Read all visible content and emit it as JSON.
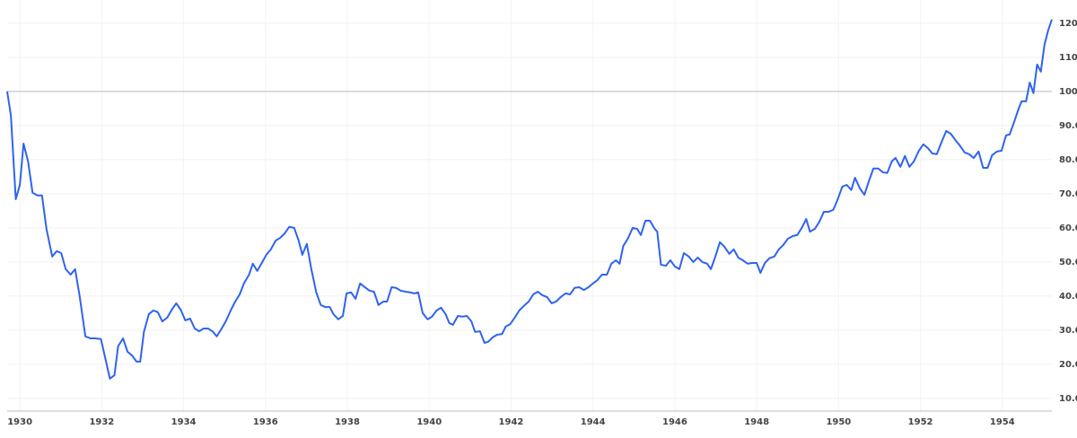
{
  "chart_data": {
    "type": "line",
    "x": [
      1929.69,
      1929.78,
      1929.9,
      1930.0,
      1930.09,
      1930.2,
      1930.31,
      1930.43,
      1930.54,
      1930.65,
      1930.79,
      1930.9,
      1931.01,
      1931.12,
      1931.24,
      1931.35,
      1931.46,
      1931.6,
      1931.73,
      1931.84,
      1931.98,
      1932.09,
      1932.2,
      1932.31,
      1932.4,
      1932.52,
      1932.63,
      1932.74,
      1932.85,
      1932.94,
      1933.03,
      1933.15,
      1933.26,
      1933.37,
      1933.48,
      1933.6,
      1933.71,
      1933.82,
      1933.93,
      1934.04,
      1934.16,
      1934.27,
      1934.38,
      1934.49,
      1934.6,
      1934.72,
      1934.81,
      1934.92,
      1935.03,
      1935.15,
      1935.26,
      1935.37,
      1935.48,
      1935.6,
      1935.69,
      1935.8,
      1935.91,
      1936.02,
      1936.13,
      1936.25,
      1936.36,
      1936.47,
      1936.58,
      1936.7,
      1936.81,
      1936.9,
      1937.01,
      1937.12,
      1937.24,
      1937.35,
      1937.46,
      1937.57,
      1937.66,
      1937.78,
      1937.89,
      1937.98,
      1938.09,
      1938.2,
      1938.31,
      1938.43,
      1938.54,
      1938.65,
      1938.76,
      1938.88,
      1938.97,
      1939.08,
      1939.19,
      1939.3,
      1939.42,
      1939.53,
      1939.64,
      1939.73,
      1939.84,
      1939.96,
      1940.07,
      1940.18,
      1940.29,
      1940.4,
      1940.49,
      1940.58,
      1940.7,
      1940.81,
      1940.92,
      1941.03,
      1941.12,
      1941.24,
      1941.35,
      1941.44,
      1941.55,
      1941.66,
      1941.78,
      1941.87,
      1941.98,
      1942.09,
      1942.2,
      1942.31,
      1942.43,
      1942.54,
      1942.65,
      1942.76,
      1942.88,
      1942.99,
      1943.1,
      1943.21,
      1943.33,
      1943.44,
      1943.55,
      1943.66,
      1943.78,
      1943.89,
      1944.0,
      1944.11,
      1944.22,
      1944.34,
      1944.45,
      1944.56,
      1944.65,
      1944.74,
      1944.85,
      1944.97,
      1945.08,
      1945.17,
      1945.28,
      1945.39,
      1945.51,
      1945.57,
      1945.66,
      1945.78,
      1945.89,
      1946.0,
      1946.11,
      1946.22,
      1946.34,
      1946.45,
      1946.56,
      1946.67,
      1946.79,
      1946.88,
      1946.99,
      1947.1,
      1947.21,
      1947.33,
      1947.44,
      1947.55,
      1947.66,
      1947.78,
      1947.89,
      1948.0,
      1948.09,
      1948.2,
      1948.31,
      1948.43,
      1948.54,
      1948.65,
      1948.76,
      1948.88,
      1948.99,
      1949.1,
      1949.21,
      1949.3,
      1949.42,
      1949.53,
      1949.64,
      1949.75,
      1949.87,
      1949.98,
      1950.09,
      1950.2,
      1950.31,
      1950.4,
      1950.52,
      1950.63,
      1950.74,
      1950.85,
      1950.97,
      1951.08,
      1951.19,
      1951.3,
      1951.39,
      1951.51,
      1951.62,
      1951.73,
      1951.84,
      1951.96,
      1952.07,
      1952.18,
      1952.29,
      1952.4,
      1952.52,
      1952.63,
      1952.74,
      1952.85,
      1952.97,
      1953.08,
      1953.19,
      1953.3,
      1953.42,
      1953.53,
      1953.64,
      1953.75,
      1953.87,
      1953.98,
      1954.09,
      1954.18,
      1954.29,
      1954.4,
      1954.47,
      1954.58,
      1954.67,
      1954.76,
      1954.85,
      1954.94,
      1955.03,
      1955.12,
      1955.21
    ],
    "series": [
      {
        "color": "#2f63f0",
        "values": [
          100,
          93,
          68.4,
          72.6,
          84.7,
          79.5,
          70.3,
          69.5,
          69.5,
          59.7,
          51.6,
          53.2,
          52.6,
          47.9,
          46.3,
          47.9,
          40,
          28.2,
          27.6,
          27.6,
          27.4,
          21.6,
          15.8,
          16.8,
          25.3,
          27.6,
          23.7,
          22.6,
          20.8,
          20.8,
          29.5,
          34.7,
          35.8,
          35.3,
          32.6,
          33.7,
          36,
          37.9,
          36,
          32.9,
          33.4,
          30.5,
          29.7,
          30.5,
          30.5,
          29.5,
          28.2,
          30.3,
          32.6,
          35.8,
          38.4,
          40.5,
          43.9,
          46.3,
          49.5,
          47.4,
          49.7,
          52.1,
          53.7,
          56.3,
          57.1,
          58.4,
          60.3,
          60,
          56.3,
          52.1,
          55.3,
          47.9,
          41.1,
          37.4,
          36.8,
          36.8,
          34.7,
          33.2,
          34.2,
          40.8,
          41.1,
          39.2,
          43.7,
          42.6,
          41.6,
          41.3,
          37.4,
          38.4,
          38.4,
          42.6,
          42.4,
          41.6,
          41.3,
          41.1,
          40.8,
          41.1,
          35,
          33.2,
          34,
          35.8,
          36.6,
          34.7,
          32.1,
          31.6,
          34.2,
          34,
          34.2,
          32.6,
          29.5,
          29.7,
          26.3,
          26.6,
          27.9,
          28.7,
          28.9,
          31.1,
          31.8,
          33.7,
          35.8,
          37.1,
          38.4,
          40.5,
          41.3,
          40.3,
          39.7,
          37.9,
          38.4,
          39.7,
          40.8,
          40.5,
          42.4,
          42.6,
          41.8,
          42.6,
          43.7,
          44.7,
          46.3,
          46.3,
          49.5,
          50.5,
          49.5,
          54.7,
          56.8,
          60,
          59.7,
          57.9,
          62.1,
          62.1,
          59.7,
          58.9,
          49.2,
          48.9,
          50.5,
          48.7,
          47.9,
          52.6,
          51.6,
          50,
          51.3,
          50,
          49.5,
          47.9,
          51.6,
          55.8,
          54.5,
          52.4,
          53.7,
          51.3,
          50.5,
          49.5,
          49.7,
          49.7,
          46.8,
          49.7,
          51.1,
          51.6,
          53.7,
          55,
          56.8,
          57.6,
          57.9,
          60,
          62.6,
          58.9,
          59.7,
          61.8,
          64.7,
          64.7,
          65.3,
          68.4,
          72.1,
          72.6,
          71.1,
          74.7,
          71.6,
          69.7,
          73.7,
          77.4,
          77.4,
          76.3,
          76.1,
          79.5,
          80.5,
          77.9,
          81.1,
          77.9,
          79.5,
          82.6,
          84.5,
          83.4,
          81.8,
          81.6,
          85.3,
          88.4,
          87.6,
          85.8,
          84,
          82.1,
          81.6,
          80.5,
          82.4,
          77.6,
          77.6,
          81.3,
          82.4,
          82.6,
          87.1,
          87.4,
          91.1,
          95,
          97.1,
          97.1,
          102.6,
          99.5,
          107.9,
          105.8,
          113.7,
          117.9,
          121.1
        ]
      }
    ],
    "xlim": [
      1929.69,
      1955.21
    ],
    "xticks": [
      1930,
      1932,
      1934,
      1936,
      1938,
      1940,
      1942,
      1944,
      1946,
      1948,
      1950,
      1952,
      1954
    ],
    "ylim": [
      6.3,
      126.8
    ],
    "yticks": [
      {
        "value": 10,
        "label": "10.00"
      },
      {
        "value": 20,
        "label": "20.00"
      },
      {
        "value": 30,
        "label": "30.00"
      },
      {
        "value": 40,
        "label": "40.00"
      },
      {
        "value": 50,
        "label": "50.00"
      },
      {
        "value": 60,
        "label": "60.00"
      },
      {
        "value": 70,
        "label": "70.00"
      },
      {
        "value": 80,
        "label": "80.00"
      },
      {
        "value": 90,
        "label": "90.00"
      },
      {
        "value": 100,
        "label": "100.00"
      },
      {
        "value": 110,
        "label": "110.00"
      },
      {
        "value": 120,
        "label": "120.00"
      }
    ],
    "reference_line": 100,
    "grid": true
  }
}
